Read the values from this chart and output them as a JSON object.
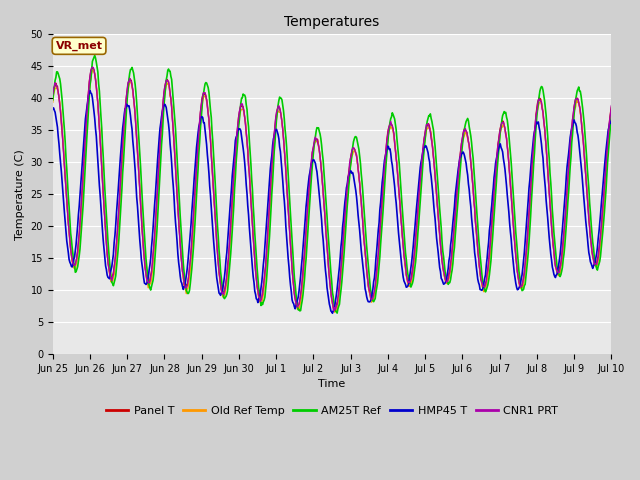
{
  "title": "Temperatures",
  "xlabel": "Time",
  "ylabel": "Temperature (C)",
  "ylim": [
    0,
    50
  ],
  "annotation_text": "VR_met",
  "series": [
    {
      "label": "Panel T",
      "color": "#cc0000",
      "lw": 1.0
    },
    {
      "label": "Old Ref Temp",
      "color": "#ff9900",
      "lw": 1.0
    },
    {
      "label": "AM25T Ref",
      "color": "#00cc00",
      "lw": 1.2
    },
    {
      "label": "HMP45 T",
      "color": "#0000cc",
      "lw": 1.2
    },
    {
      "label": "CNR1 PRT",
      "color": "#aa00aa",
      "lw": 1.0
    }
  ],
  "xtick_labels": [
    "Jun 25",
    "Jun 26",
    "Jun 27",
    "Jun 28",
    "Jun 29",
    "Jun 30",
    "Jul 1",
    "Jul 2",
    "Jul 3",
    "Jul 4",
    "Jul 5",
    "Jul 6",
    "Jul 7",
    "Jul 8",
    "Jul 9",
    "Jul 10"
  ],
  "title_fontsize": 10,
  "tick_fontsize": 7,
  "label_fontsize": 8,
  "legend_fontsize": 8
}
